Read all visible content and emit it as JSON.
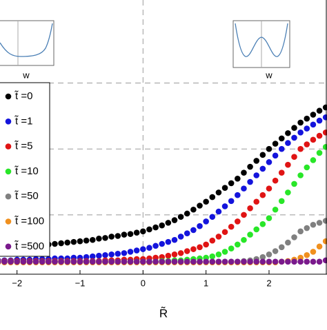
{
  "chart_data": {
    "type": "scatter",
    "x_label": "R̃",
    "x": [
      -2.3,
      -2.2,
      -2.1,
      -2,
      -1.9,
      -1.8,
      -1.7,
      -1.6,
      -1.5,
      -1.4,
      -1.3,
      -1.2,
      -1.1,
      -1,
      -0.9,
      -0.8,
      -0.7,
      -0.6,
      -0.5,
      -0.4,
      -0.3,
      -0.2,
      -0.1,
      0,
      0.1,
      0.2,
      0.3,
      0.4,
      0.5,
      0.6,
      0.7,
      0.8,
      0.9,
      1,
      1.1,
      1.2,
      1.3,
      1.4,
      1.5,
      1.6,
      1.7,
      1.8,
      1.9,
      2,
      2.1,
      2.2,
      2.3,
      2.4,
      2.5,
      2.6,
      2.7,
      2.8,
      2.9
    ],
    "series": [
      {
        "name": "t̃ =0",
        "color": "#000000",
        "values": [
          0.48,
          0.49,
          0.49,
          0.5,
          0.51,
          0.52,
          0.53,
          0.54,
          0.55,
          0.56,
          0.57,
          0.58,
          0.59,
          0.6,
          0.61,
          0.62,
          0.64,
          0.65,
          0.67,
          0.68,
          0.7,
          0.71,
          0.73,
          0.75,
          0.78,
          0.81,
          0.84,
          0.88,
          0.92,
          0.97,
          1.02,
          1.08,
          1.14,
          1.2,
          1.27,
          1.34,
          1.41,
          1.48,
          1.55,
          1.64,
          1.73,
          1.82,
          1.91,
          2.0,
          2.08,
          2.16,
          2.24,
          2.32,
          2.4,
          2.46,
          2.52,
          2.58,
          2.63
        ]
      },
      {
        "name": "t̃ =1",
        "color": "#1414dc",
        "values": [
          0.31,
          0.31,
          0.31,
          0.32,
          0.32,
          0.32,
          0.33,
          0.33,
          0.33,
          0.34,
          0.34,
          0.34,
          0.35,
          0.35,
          0.36,
          0.37,
          0.38,
          0.39,
          0.4,
          0.41,
          0.42,
          0.44,
          0.46,
          0.48,
          0.5,
          0.53,
          0.56,
          0.59,
          0.62,
          0.67,
          0.72,
          0.77,
          0.83,
          0.9,
          0.97,
          1.05,
          1.13,
          1.21,
          1.3,
          1.4,
          1.5,
          1.6,
          1.7,
          1.8,
          1.9,
          2.0,
          2.09,
          2.17,
          2.25,
          2.31,
          2.37,
          2.43,
          2.48
        ]
      },
      {
        "name": "t̃ =5",
        "color": "#e01414",
        "values": [
          0.3,
          0.3,
          0.3,
          0.3,
          0.3,
          0.3,
          0.3,
          0.3,
          0.3,
          0.3,
          0.3,
          0.3,
          0.3,
          0.3,
          0.3,
          0.3,
          0.3,
          0.31,
          0.31,
          0.31,
          0.32,
          0.32,
          0.33,
          0.33,
          0.34,
          0.35,
          0.36,
          0.38,
          0.4,
          0.42,
          0.45,
          0.48,
          0.51,
          0.55,
          0.61,
          0.67,
          0.74,
          0.82,
          0.9,
          1.0,
          1.1,
          1.2,
          1.3,
          1.4,
          1.52,
          1.64,
          1.76,
          1.88,
          2.0,
          2.07,
          2.14,
          2.2,
          2.25
        ]
      },
      {
        "name": "t̃ =10",
        "color": "#28e628",
        "values": [
          0.29,
          0.29,
          0.29,
          0.29,
          0.29,
          0.29,
          0.29,
          0.29,
          0.29,
          0.29,
          0.29,
          0.29,
          0.29,
          0.29,
          0.29,
          0.29,
          0.29,
          0.29,
          0.29,
          0.29,
          0.29,
          0.29,
          0.29,
          0.29,
          0.29,
          0.29,
          0.3,
          0.3,
          0.31,
          0.31,
          0.32,
          0.33,
          0.34,
          0.35,
          0.37,
          0.4,
          0.44,
          0.49,
          0.55,
          0.62,
          0.7,
          0.78,
          0.86,
          0.95,
          1.08,
          1.21,
          1.34,
          1.47,
          1.6,
          1.72,
          1.83,
          1.94,
          2.03
        ]
      },
      {
        "name": "t̃ =50",
        "color": "#808080",
        "values": [
          0.29,
          0.29,
          0.29,
          0.29,
          0.29,
          0.29,
          0.29,
          0.29,
          0.29,
          0.29,
          0.29,
          0.29,
          0.29,
          0.29,
          0.29,
          0.29,
          0.29,
          0.29,
          0.29,
          0.29,
          0.29,
          0.29,
          0.29,
          0.29,
          0.29,
          0.29,
          0.29,
          0.29,
          0.29,
          0.29,
          0.29,
          0.29,
          0.29,
          0.29,
          0.29,
          0.29,
          0.29,
          0.29,
          0.29,
          0.3,
          0.31,
          0.33,
          0.36,
          0.4,
          0.45,
          0.51,
          0.58,
          0.66,
          0.75,
          0.8,
          0.85,
          0.88,
          0.91
        ]
      },
      {
        "name": "t̃ =100",
        "color": "#f0901e",
        "values": [
          0.28,
          0.28,
          0.28,
          0.28,
          0.28,
          0.28,
          0.28,
          0.28,
          0.28,
          0.28,
          0.28,
          0.28,
          0.28,
          0.28,
          0.28,
          0.28,
          0.28,
          0.28,
          0.28,
          0.28,
          0.28,
          0.28,
          0.28,
          0.28,
          0.28,
          0.28,
          0.28,
          0.28,
          0.28,
          0.28,
          0.28,
          0.28,
          0.28,
          0.28,
          0.28,
          0.28,
          0.28,
          0.28,
          0.28,
          0.28,
          0.28,
          0.28,
          0.28,
          0.28,
          0.28,
          0.29,
          0.3,
          0.32,
          0.35,
          0.39,
          0.44,
          0.52,
          0.6
        ]
      },
      {
        "name": "t̃ =500",
        "color": "#7a1a8c",
        "values": [
          0.29,
          0.29,
          0.29,
          0.29,
          0.29,
          0.29,
          0.29,
          0.29,
          0.29,
          0.29,
          0.29,
          0.29,
          0.29,
          0.29,
          0.29,
          0.29,
          0.29,
          0.29,
          0.29,
          0.29,
          0.29,
          0.29,
          0.29,
          0.29,
          0.29,
          0.29,
          0.29,
          0.29,
          0.29,
          0.29,
          0.29,
          0.29,
          0.29,
          0.29,
          0.29,
          0.29,
          0.29,
          0.29,
          0.29,
          0.29,
          0.29,
          0.29,
          0.29,
          0.29,
          0.29,
          0.29,
          0.29,
          0.29,
          0.29,
          0.29,
          0.29,
          0.29,
          0.31
        ]
      }
    ],
    "xlim": [
      -2.27,
      2.92
    ],
    "ylim": [
      0.1,
      4.26
    ],
    "xticks": [
      {
        "value": -2,
        "label": "−2"
      },
      {
        "value": -1,
        "label": "−1"
      },
      0,
      1,
      2
    ],
    "xgrid": [
      0
    ],
    "ygrid": [
      1,
      2,
      3
    ],
    "insets": [
      {
        "x_label": "w"
      },
      {
        "x_label": "w"
      }
    ]
  }
}
